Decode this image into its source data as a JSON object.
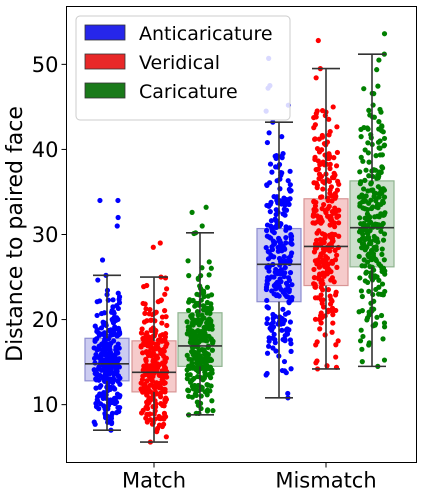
{
  "chart_data": {
    "type": "box-strip",
    "ylabel": "Distance to paired face",
    "xlabel": "",
    "ylim": [
      3.2,
      56.8
    ],
    "yticks": [
      10,
      20,
      30,
      40,
      50
    ],
    "categories": [
      "Match",
      "Mismatch"
    ],
    "grid": false,
    "legend_position": "top-left",
    "series": [
      {
        "name": "Anticaricature",
        "color": "#0000ff",
        "legend_color": "#2626ea",
        "box_fill": "#c7c7f0",
        "box_edge": "#8d8dd0",
        "points_per_group": 260,
        "boxes": [
          {
            "category": "Match",
            "min": 7.0,
            "q1": 12.8,
            "median": 14.8,
            "q3": 17.8,
            "max": 25.2,
            "outliers": [
              27.0,
              31.0,
              32.0,
              34.0,
              34.0
            ]
          },
          {
            "category": "Mismatch",
            "min": 10.8,
            "q1": 22.1,
            "median": 26.5,
            "q3": 30.7,
            "max": 43.2,
            "outliers": [
              44.5,
              45.2,
              47.2,
              47.5,
              50.7
            ]
          }
        ]
      },
      {
        "name": "Veridical",
        "color": "#ff0000",
        "legend_color": "#e82828",
        "box_fill": "#f5c5c5",
        "box_edge": "#d89595",
        "points_per_group": 260,
        "boxes": [
          {
            "category": "Match",
            "min": 5.6,
            "q1": 11.5,
            "median": 13.8,
            "q3": 17.5,
            "max": 25.0,
            "outliers": [
              28.5,
              29.0
            ]
          },
          {
            "category": "Mismatch",
            "min": 14.2,
            "q1": 24.0,
            "median": 28.6,
            "q3": 34.2,
            "max": 49.5,
            "outliers": [
              52.8
            ]
          }
        ]
      },
      {
        "name": "Caricature",
        "color": "#008000",
        "legend_color": "#1a7a1a",
        "box_fill": "#c8dcc8",
        "box_edge": "#8fb48f",
        "points_per_group": 260,
        "boxes": [
          {
            "category": "Match",
            "min": 8.8,
            "q1": 14.5,
            "median": 16.9,
            "q3": 20.8,
            "max": 30.2,
            "outliers": [
              31.0,
              32.6,
              33.2
            ]
          },
          {
            "category": "Mismatch",
            "min": 14.5,
            "q1": 26.2,
            "median": 30.8,
            "q3": 36.3,
            "max": 51.2,
            "outliers": [
              53.6
            ]
          }
        ]
      }
    ]
  }
}
